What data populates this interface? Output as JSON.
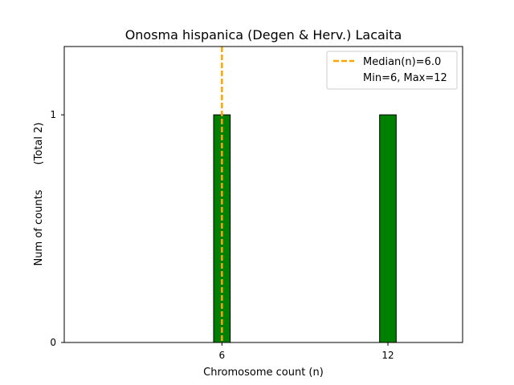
{
  "chart_data": {
    "type": "bar",
    "title": "Onosma hispanica (Degen & Herv.) Lacaita",
    "xlabel": "Chromosome count (n)",
    "ylabel": "Num of counts",
    "ylabel_total": "(Total 2)",
    "x_ticks": [
      6,
      12
    ],
    "y_ticks": [
      0,
      1
    ],
    "xlim": [
      0.3,
      14.7
    ],
    "ylim": [
      0,
      1.3
    ],
    "bars": [
      {
        "x": 6,
        "value": 1
      },
      {
        "x": 12,
        "value": 1
      }
    ],
    "bar_width": 1,
    "bar_color": "#008000",
    "bar_edge_color": "#000000",
    "median": 6.0,
    "median_color": "#ffa500",
    "legend": {
      "position": "top-right",
      "entries": [
        "Median(n)=6.0",
        "Min=6, Max=12"
      ]
    }
  }
}
